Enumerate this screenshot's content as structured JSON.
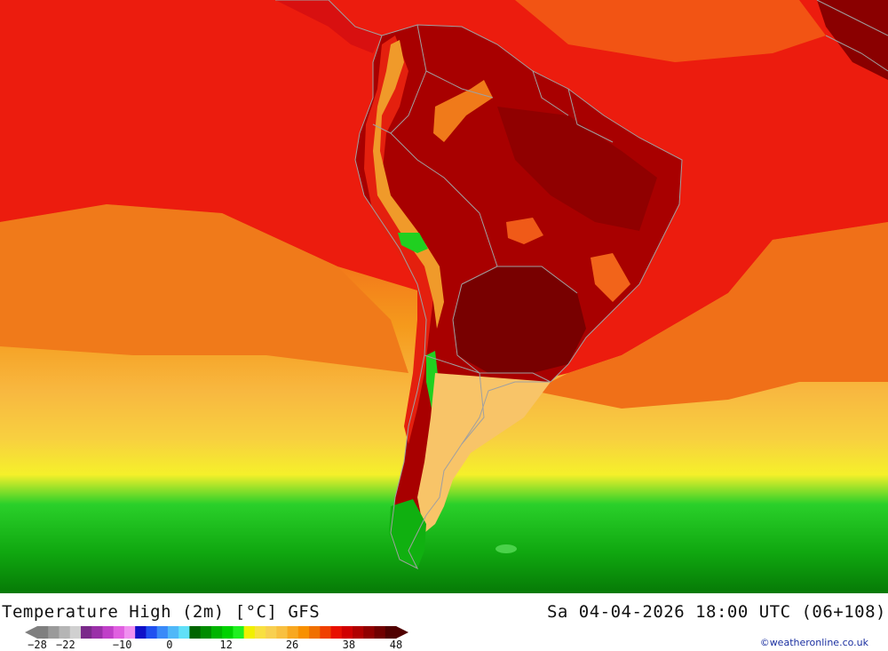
{
  "map": {
    "title": "Temperature High (2m) [°C] GFS",
    "valid_time": "Sa 04-04-2026 18:00 UTC (06+108)",
    "credit": "©weatheronline.co.uk",
    "region": "South America",
    "legend": {
      "unit": "°C",
      "ticks": [
        "-28",
        "-22",
        "-10",
        "0",
        "12",
        "26",
        "38",
        "48"
      ],
      "colors": [
        "#7f7f7f",
        "#9a9a9a",
        "#b5b5b5",
        "#d0d0d0",
        "#7a2a8a",
        "#9a30a8",
        "#c040c8",
        "#e060e0",
        "#f090f0",
        "#1010c8",
        "#2050f0",
        "#3a8af8",
        "#50b8f8",
        "#60e0f8",
        "#006400",
        "#008c00",
        "#00b400",
        "#00d200",
        "#20f020",
        "#f0f000",
        "#f8e040",
        "#f8d050",
        "#f8c040",
        "#f8a820",
        "#f89000",
        "#f07000",
        "#f04000",
        "#e81000",
        "#d00000",
        "#b00000",
        "#900000",
        "#700000",
        "#500000"
      ]
    },
    "palette": {
      "ocean_north": "#ee1a0e",
      "ocean_mid": "#f27d13",
      "ocean_south_warm": "#f8b53c",
      "ocean_yellow": "#f5f02a",
      "ocean_green": "#1ec81e",
      "ocean_darkgreen": "#0a9a0a",
      "land_hot": "#a80000",
      "land_hotter": "#7a0000",
      "land_coast": "#d80e0e",
      "patagonia": "#f8c864",
      "borders": "#a0a0a0"
    }
  }
}
